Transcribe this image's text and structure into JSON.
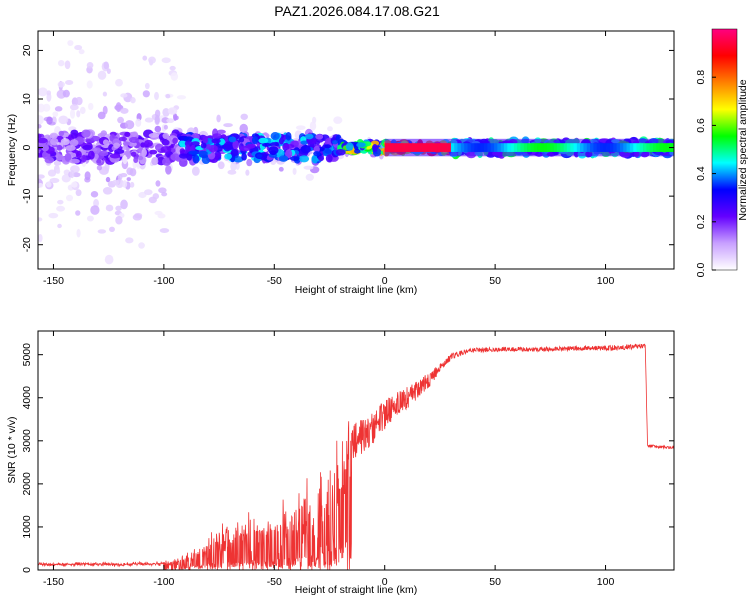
{
  "title": "PAZ1.2026.084.17.08.G21",
  "chart_data": [
    {
      "type": "heatmap",
      "xlabel": "Height of straight line (km)",
      "ylabel": "Frequency (Hz)",
      "xlim": [
        -157,
        131
      ],
      "ylim": [
        -25,
        24
      ],
      "xticks": [
        -150,
        -100,
        -50,
        0,
        50,
        100
      ],
      "yticks": [
        -20,
        -10,
        0,
        10,
        20
      ],
      "xtick_labels": [
        "-150",
        "-100",
        "-50",
        "0",
        "50",
        "100"
      ],
      "ytick_labels": [
        "-20",
        "-10",
        "0",
        "10",
        "20"
      ],
      "description_regions": [
        {
          "x": [
            -157,
            -92
          ],
          "scatter_hz": 24,
          "core_hz": 3,
          "max_amplitude": 0.25
        },
        {
          "x": [
            -92,
            -20
          ],
          "scatter_hz": 7,
          "core_hz": 2.5,
          "max_amplitude": 0.45
        },
        {
          "x": [
            -20,
            0
          ],
          "scatter_hz": 2,
          "core_hz": 1,
          "max_amplitude": 0.75
        },
        {
          "x": [
            0,
            30
          ],
          "scatter_hz": 0.5,
          "core_hz": 1,
          "max_amplitude": 1.0
        },
        {
          "x": [
            30,
            131
          ],
          "scatter_hz": 0.3,
          "core_hz": 1.5,
          "max_amplitude": 0.55
        }
      ],
      "colorbar": {
        "label": "Normalized spectral amplitude",
        "range": [
          0,
          1
        ],
        "ticks": [
          0.0,
          0.2,
          0.4,
          0.6,
          0.8
        ],
        "tick_labels": [
          "0.0",
          "0.2",
          "0.4",
          "0.6",
          "0.8"
        ],
        "colors": [
          "#ffffff",
          "#c8a0ff",
          "#6400ff",
          "#0000ff",
          "#00ffff",
          "#00ff00",
          "#ffff00",
          "#ff8000",
          "#ff0000",
          "#ff0080"
        ]
      }
    },
    {
      "type": "line",
      "xlabel": "Height of straight line (km)",
      "ylabel": "SNR (10 * v/v)",
      "xlim": [
        -157,
        131
      ],
      "ylim": [
        0,
        5550
      ],
      "xticks": [
        -150,
        -100,
        -50,
        0,
        50,
        100
      ],
      "yticks": [
        0,
        1000,
        2000,
        3000,
        4000,
        5000
      ],
      "xtick_labels": [
        "-150",
        "-100",
        "-50",
        "0",
        "50",
        "100"
      ],
      "ytick_labels": [
        "0",
        "1000",
        "2000",
        "3000",
        "4000",
        "5000"
      ],
      "series": [
        {
          "name": "SNR",
          "color": "#ee3333",
          "x": [
            -157,
            -140,
            -120,
            -100,
            -90,
            -80,
            -70,
            -60,
            -50,
            -40,
            -30,
            -25,
            -20,
            -15,
            -10,
            -5,
            0,
            5,
            10,
            15,
            20,
            25,
            30,
            35,
            40,
            50,
            60,
            70,
            80,
            90,
            100,
            110,
            118,
            119,
            125,
            131
          ],
          "y": [
            130,
            140,
            130,
            150,
            220,
            500,
            700,
            850,
            950,
            1100,
            1300,
            1600,
            1900,
            3000,
            3100,
            3300,
            3600,
            3800,
            4000,
            4200,
            4400,
            4700,
            4950,
            5050,
            5100,
            5120,
            5130,
            5120,
            5140,
            5150,
            5150,
            5180,
            5200,
            2900,
            2850,
            2850
          ],
          "noise": [
            60,
            60,
            60,
            60,
            200,
            400,
            600,
            700,
            800,
            1100,
            1400,
            1600,
            1700,
            700,
            700,
            600,
            600,
            500,
            450,
            350,
            300,
            150,
            120,
            100,
            90,
            90,
            90,
            90,
            90,
            90,
            100,
            100,
            100,
            60,
            60,
            60
          ]
        }
      ]
    }
  ]
}
